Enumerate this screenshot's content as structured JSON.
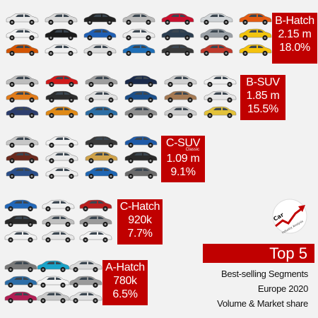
{
  "chart_data": {
    "type": "table",
    "title": "Top 5",
    "subtitle_lines": [
      "Best-selling Segments",
      "Europe 2020",
      "Volume & Market share"
    ],
    "segments": [
      {
        "name": "B-Hatch",
        "note": "",
        "volume": "2.15 m",
        "share": "18.0%",
        "volume_millions": 2.15,
        "share_pct": 18.0
      },
      {
        "name": "B-SUV",
        "note": "",
        "volume": "1.85 m",
        "share": "15.5%",
        "volume_millions": 1.85,
        "share_pct": 15.5
      },
      {
        "name": "C-SUV",
        "note": "Classic",
        "volume": "1.09 m",
        "share": "9.1%",
        "volume_millions": 1.09,
        "share_pct": 9.1
      },
      {
        "name": "C-Hatch",
        "note": "",
        "volume": "920k",
        "share": "7.7%",
        "volume_millions": 0.92,
        "share_pct": 7.7
      },
      {
        "name": "A-Hatch",
        "note": "",
        "volume": "780k",
        "share": "6.5%",
        "volume_millions": 0.78,
        "share_pct": 6.5
      }
    ]
  },
  "logo": {
    "icon": "car-industry-analysis-logo",
    "text": "Car Industry Analysis",
    "accent": "#c00000"
  },
  "colors": {
    "accent": "#c00000",
    "background": "#f2f2f2"
  },
  "car_colors": {
    "b_hatch": [
      "#e9e9e9",
      "#d8d8d8",
      "#222222",
      "#b9b9b9",
      "#c8102e",
      "#cfd3d6",
      "#e35b12",
      "#f2f2f2",
      "#1c1c1c",
      "#1f5fb4",
      "#eaeaea",
      "#2c3e50",
      "#9aa0a6",
      "#f1c40f",
      "#d35400",
      "#eeeeee",
      "#dcdcdc",
      "#1e6fb8",
      "#3a3a3a",
      "#c0392b",
      "#f4c20d"
    ],
    "b_suv": [
      "#bdbdbd",
      "#d11a1a",
      "#9e9e9e",
      "#1a2a4a",
      "#cfcfcf",
      "#eeeeee",
      "#e07b1a",
      "#2d2d2d",
      "#e0e0e0",
      "#1b4f8a",
      "#a57a54",
      "#e6e6e6",
      "#2d3e6e",
      "#e08a16",
      "#2c6ea5",
      "#8e8e8e",
      "#cccccc",
      "#e3c23a"
    ],
    "c_suv": [
      "#c7c7c7",
      "#f0f0f0",
      "#3a3a3a",
      "#1e5aa8",
      "#6b2a1e",
      "#e8e8e8",
      "#cfa24a",
      "#2b2b2b",
      "#2b4f8a",
      "#ededed",
      "#1f66b3",
      "#6a6a6a"
    ],
    "c_hatch": [
      "#2267b8",
      "#eeeeee",
      "#b81f1f",
      "#2a2a2a",
      "#bfbfbf",
      "#9a9a9a",
      "#f0f0f0",
      "#e6e6e6",
      "#f2f2f2"
    ],
    "a_hatch": [
      "#7a7a7a",
      "#1aa3c8",
      "#d9d9d9",
      "#2d6ea8",
      "#f2f2f2",
      "#9a9a9a",
      "#b21f55",
      "#c9c9c9",
      "#e0e0e0"
    ]
  }
}
